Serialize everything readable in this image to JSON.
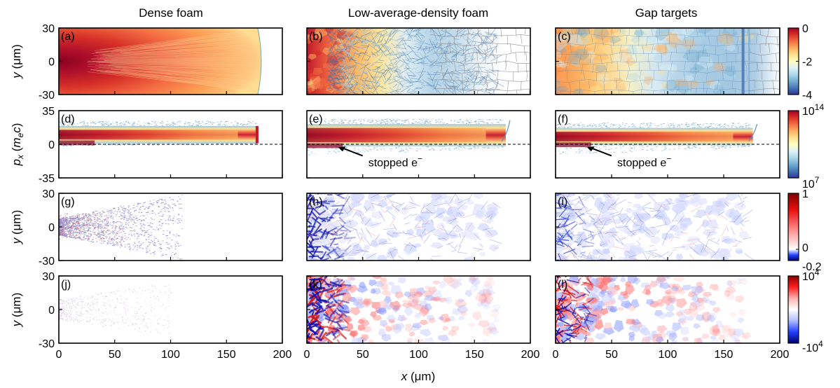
{
  "figure": {
    "column_titles": [
      "Dense foam",
      "Low-average-density foam",
      "Gap targets"
    ],
    "xlabel_pre": "x",
    "xlabel_post": " (μm)"
  },
  "colors": {
    "rdylbu": [
      "#313695",
      "#4575b4",
      "#74add1",
      "#abd9e9",
      "#e0f3f8",
      "#ffffbf",
      "#fee090",
      "#fdae61",
      "#f46d43",
      "#d73027",
      "#a50026"
    ],
    "diverging": [
      "#05006b",
      "#2040ff",
      "#b0bcff",
      "#ffffff",
      "#ffb0b0",
      "#ff2020",
      "#8a0000"
    ]
  },
  "chart_data": [
    {
      "type": "heatmap",
      "row": "density",
      "ylabel_pre": "y",
      "ylabel_post": " (μm)",
      "ylim": [
        -30,
        30
      ],
      "yticks": [
        "30",
        "0",
        "-30"
      ],
      "xlim": [
        0,
        200
      ],
      "colorbar": {
        "range": [
          -4,
          0
        ],
        "ticks": [
          "0",
          "-2",
          "-4"
        ],
        "map": "rdylbu"
      },
      "panels": [
        {
          "label": "(a)",
          "target": "Dense foam"
        },
        {
          "label": "(b)",
          "target": "Low-average-density foam"
        },
        {
          "label": "(c)",
          "target": "Gap targets"
        }
      ]
    },
    {
      "type": "heatmap",
      "row": "phase-space",
      "ylabel_pre": "p",
      "ylabel_sub": "x",
      "ylabel_mid": " (m",
      "ylabel_sub2": "e",
      "ylabel_post": "c)",
      "ylim": [
        -35,
        35
      ],
      "yticks": [
        "35",
        "0",
        "-35"
      ],
      "xlim": [
        0,
        200
      ],
      "colorbar": {
        "range": [
          7,
          14
        ],
        "scale": "log",
        "ticks_base": [
          "10",
          "10"
        ],
        "ticks_exp": [
          "14",
          "7"
        ],
        "map": "rdylbu"
      },
      "panels": [
        {
          "label": "(d)",
          "target": "Dense foam",
          "beam_end_x": 178
        },
        {
          "label": "(e)",
          "target": "Low-average-density foam",
          "beam_end_x": 178,
          "annotation": "stopped e",
          "annotation_sup": "−",
          "arrow_to_x": 28
        },
        {
          "label": "(f)",
          "target": "Gap targets",
          "beam_end_x": 176,
          "annotation": "stopped e",
          "annotation_sup": "−",
          "arrow_to_x": 28
        }
      ]
    },
    {
      "type": "heatmap",
      "row": "field-1",
      "ylabel_pre": "y",
      "ylabel_post": " (μm)",
      "ylim": [
        -30,
        30
      ],
      "yticks": [
        "30",
        "0",
        "-30"
      ],
      "xlim": [
        0,
        200
      ],
      "colorbar": {
        "range": [
          -0.2,
          1
        ],
        "ticks": [
          "1",
          "0",
          "-0.2"
        ],
        "map": "diverging"
      },
      "panels": [
        {
          "label": "(g)",
          "target": "Dense foam"
        },
        {
          "label": "(h)",
          "target": "Low-average-density foam"
        },
        {
          "label": "(i)",
          "target": "Gap targets"
        }
      ]
    },
    {
      "type": "heatmap",
      "row": "field-2",
      "ylabel_pre": "y",
      "ylabel_post": " (μm)",
      "ylim": [
        -30,
        30
      ],
      "yticks": [
        "30",
        "0",
        "-30"
      ],
      "xlim": [
        0,
        200
      ],
      "xticks": [
        "0",
        "50",
        "100",
        "150",
        "200"
      ],
      "colorbar": {
        "range": [
          -10000,
          10000
        ],
        "ticks_base": [
          "10",
          "-10"
        ],
        "ticks_exp": [
          "4",
          "4"
        ],
        "map": "diverging"
      },
      "panels": [
        {
          "label": "(j)",
          "target": "Dense foam"
        },
        {
          "label": "(k)",
          "target": "Low-average-density foam"
        },
        {
          "label": "(l)",
          "target": "Gap targets"
        }
      ]
    }
  ]
}
